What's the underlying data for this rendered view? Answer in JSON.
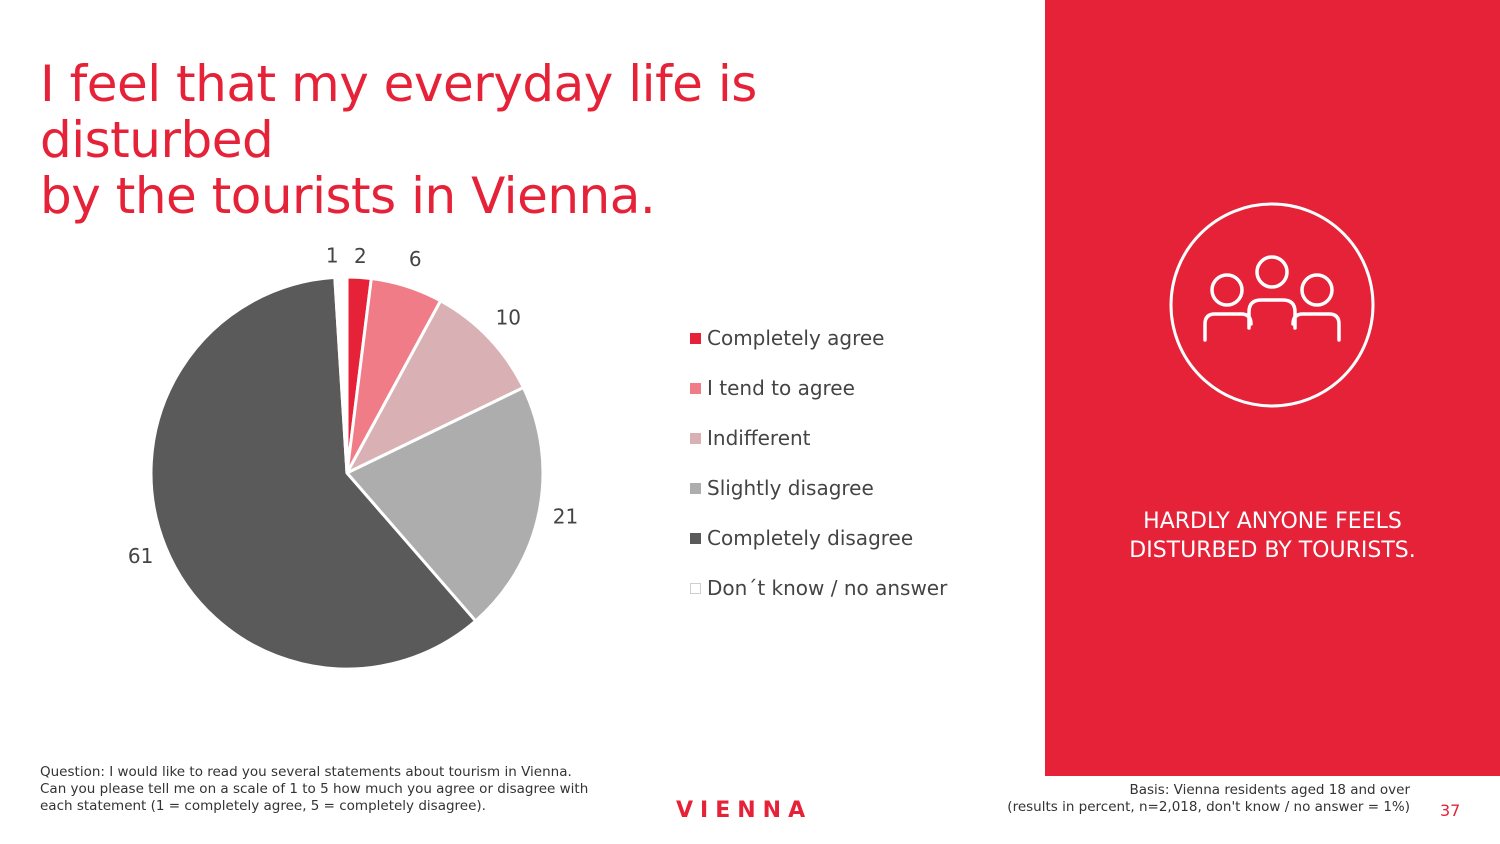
{
  "slide": {
    "title_line1": "I feel that my everyday life is disturbed",
    "title_line2": "by the tourists in Vienna.",
    "question": "Question: I would like to read you several statements about tourism in Vienna. Can you please tell me on a scale of 1 to 5 how much you agree or disagree with each statement (1 = completely agree, 5 = completely disagree).",
    "brand": "VIENNA",
    "basis_line1": "Basis: Vienna residents aged 18 and over",
    "basis_line2": "(results in percent, n=2,018, don't know / no answer = 1%)",
    "page_number": "37"
  },
  "panel": {
    "icon": "people-group-icon",
    "text_line1": "HARDLY ANYONE FEELS",
    "text_line2": "DISTURBED BY TOURISTS.",
    "background": "#e52238"
  },
  "chart_data": {
    "type": "pie",
    "title": "",
    "legend_position": "right",
    "slices": [
      {
        "label": "Completely agree",
        "value": 2,
        "color": "#e52238"
      },
      {
        "label": "I tend to agree",
        "value": 6,
        "color": "#f07c88"
      },
      {
        "label": "Indifferent",
        "value": 10,
        "color": "#d9b1b4"
      },
      {
        "label": "Slightly disagree",
        "value": 21,
        "color": "#adadad"
      },
      {
        "label": "Completely disagree",
        "value": 61,
        "color": "#5a5a5a"
      },
      {
        "label": "Don´t know / no answer",
        "value": 1,
        "color": "#ffffff"
      }
    ]
  }
}
